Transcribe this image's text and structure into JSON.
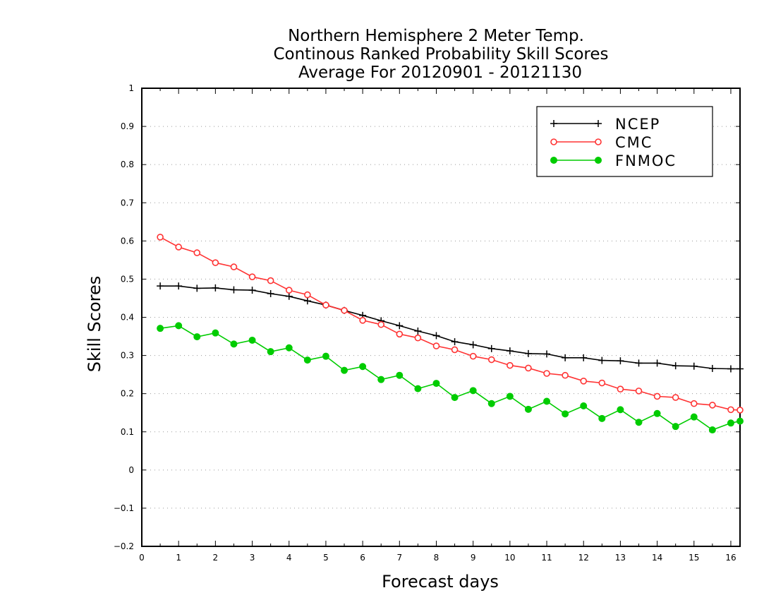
{
  "chart_data": {
    "type": "line",
    "title": [
      "Northern Hemisphere 2 Meter Temp.",
      "Continous Ranked Probability Skill Scores",
      "Average For 20120901 - 20121130"
    ],
    "xlabel": "Forecast days",
    "ylabel": "Skill Scores",
    "xlim": [
      0,
      16.25
    ],
    "ylim": [
      -0.2,
      1
    ],
    "xticks": [
      "0",
      "1",
      "2",
      "3",
      "4",
      "5",
      "6",
      "7",
      "8",
      "9",
      "10",
      "11",
      "12",
      "13",
      "14",
      "15",
      "16"
    ],
    "yticks": [
      "−0.2",
      "−0.1",
      "0",
      "0.1",
      "0.2",
      "0.3",
      "0.4",
      "0.5",
      "0.6",
      "0.7",
      "0.8",
      "0.9",
      "1"
    ],
    "grid": "horizontal dotted",
    "legend_position": "top-right",
    "x": [
      0.5,
      1.0,
      1.5,
      2.0,
      2.5,
      3.0,
      3.5,
      4.0,
      4.5,
      5.0,
      5.5,
      6.0,
      6.5,
      7.0,
      7.5,
      8.0,
      8.5,
      9.0,
      9.5,
      10.0,
      10.5,
      11.0,
      11.5,
      12.0,
      12.5,
      13.0,
      13.5,
      14.0,
      14.5,
      15.0,
      15.5,
      16.0,
      16.25
    ],
    "series": [
      {
        "name": "NCEP",
        "color": "#000000",
        "marker": "plus",
        "values": [
          0.482,
          0.482,
          0.476,
          0.477,
          0.472,
          0.471,
          0.462,
          0.455,
          0.443,
          0.432,
          0.418,
          0.405,
          0.391,
          0.378,
          0.364,
          0.352,
          0.336,
          0.328,
          0.318,
          0.312,
          0.305,
          0.304,
          0.294,
          0.294,
          0.287,
          0.286,
          0.28,
          0.28,
          0.273,
          0.272,
          0.266,
          0.265,
          0.265
        ]
      },
      {
        "name": "CMC",
        "color": "#ff3333",
        "marker": "open-circle",
        "values": [
          0.61,
          0.584,
          0.569,
          0.543,
          0.532,
          0.506,
          0.496,
          0.471,
          0.459,
          0.432,
          0.418,
          0.392,
          0.381,
          0.356,
          0.346,
          0.325,
          0.315,
          0.298,
          0.289,
          0.274,
          0.267,
          0.253,
          0.248,
          0.233,
          0.228,
          0.212,
          0.207,
          0.193,
          0.19,
          0.174,
          0.17,
          0.158,
          0.157
        ]
      },
      {
        "name": "FNMOC",
        "color": "#00cc00",
        "marker": "filled-circle",
        "values": [
          0.371,
          0.378,
          0.349,
          0.359,
          0.33,
          0.34,
          0.31,
          0.32,
          0.288,
          0.298,
          0.261,
          0.271,
          0.237,
          0.248,
          0.213,
          0.227,
          0.19,
          0.208,
          0.174,
          0.193,
          0.159,
          0.18,
          0.147,
          0.168,
          0.135,
          0.158,
          0.125,
          0.148,
          0.114,
          0.139,
          0.105,
          0.123,
          0.128
        ]
      }
    ]
  }
}
